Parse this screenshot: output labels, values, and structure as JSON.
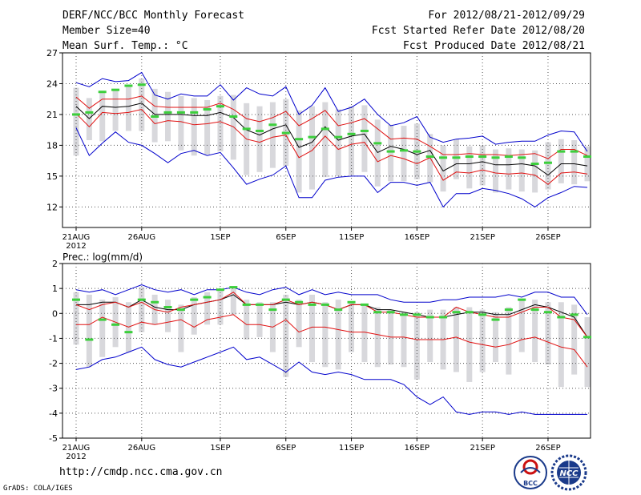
{
  "header": {
    "title": "DERF/NCC/BCC Monthly Forecast",
    "member_size": "Member Size=40",
    "variable": "Mean Surf. Temp.: °C",
    "period": "For 2012/08/21-2012/09/29",
    "fcst_started": "Fcst Started Refer Date 2012/08/20",
    "fcst_produced": "Fcst Produced Date 2012/08/21"
  },
  "footer": {
    "url": "http://cmdp.ncc.cma.gov.cn",
    "grads": "GrADS: COLA/IGES",
    "logo_bcc": "BCC",
    "logo_ncc": "NCC"
  },
  "colors": {
    "max_min": "#0000cc",
    "spread": "#e01010",
    "mean": "#000000",
    "obs": "#3ccf3c",
    "box": "#d8d8dc"
  },
  "chart_data": [
    {
      "type": "line",
      "title": "Mean Surf. Temp.: °C",
      "x_ticks": [
        "21AUG",
        "26AUG",
        "1SEP",
        "6SEP",
        "11SEP",
        "16SEP",
        "21SEP",
        "26SEP"
      ],
      "x_tick_index": [
        0,
        5,
        11,
        16,
        21,
        26,
        31,
        36
      ],
      "x_sublabel": "2012",
      "y_ticks": [
        "12",
        "15",
        "18",
        "21",
        "24",
        "27"
      ],
      "ylim": [
        10,
        27
      ],
      "grid": true,
      "series": [
        {
          "name": "max",
          "values": [
            24.1,
            23.7,
            24.5,
            24.2,
            24.3,
            25.1,
            22.9,
            22.5,
            23.0,
            22.8,
            22.8,
            23.9,
            22.4,
            23.6,
            23.0,
            22.8,
            23.7,
            21.0,
            21.9,
            23.6,
            21.3,
            21.7,
            22.5,
            21.0,
            19.9,
            20.2,
            20.8,
            18.8,
            18.3,
            18.6,
            18.7,
            18.9,
            18.1,
            18.3,
            18.4,
            18.4,
            19.0,
            19.4,
            19.3,
            17.4
          ]
        },
        {
          "name": "upper",
          "values": [
            22.7,
            21.6,
            22.5,
            22.5,
            22.5,
            22.8,
            21.8,
            21.7,
            21.7,
            21.7,
            21.7,
            22.1,
            21.5,
            20.6,
            20.3,
            20.7,
            21.3,
            19.9,
            20.6,
            21.4,
            19.9,
            20.2,
            20.6,
            19.6,
            18.6,
            18.7,
            18.6,
            17.9,
            17.1,
            17.1,
            17.2,
            17.1,
            17.1,
            17.0,
            17.1,
            17.2,
            16.7,
            17.6,
            17.6,
            17.0
          ]
        },
        {
          "name": "mean",
          "values": [
            21.8,
            20.6,
            21.8,
            21.7,
            21.8,
            22.1,
            21.0,
            21.0,
            21.0,
            20.9,
            20.9,
            21.2,
            20.7,
            19.5,
            19.0,
            19.6,
            20.0,
            17.8,
            18.3,
            19.8,
            18.5,
            18.9,
            19.1,
            17.3,
            17.9,
            17.6,
            17.1,
            17.5,
            15.5,
            16.2,
            16.2,
            16.4,
            16.1,
            16.1,
            16.2,
            16.0,
            15.1,
            16.2,
            16.2,
            16.0
          ]
        },
        {
          "name": "lower",
          "values": [
            21.1,
            19.8,
            21.2,
            21.1,
            21.2,
            21.5,
            20.1,
            20.4,
            20.3,
            20.0,
            20.1,
            20.3,
            19.8,
            18.6,
            18.3,
            18.8,
            19.0,
            16.8,
            17.5,
            18.9,
            17.6,
            18.1,
            18.3,
            16.4,
            17.0,
            16.7,
            16.2,
            16.8,
            14.6,
            15.4,
            15.3,
            15.6,
            15.3,
            15.2,
            15.3,
            15.1,
            14.2,
            15.3,
            15.4,
            15.2
          ]
        },
        {
          "name": "min",
          "values": [
            19.7,
            17.0,
            18.2,
            19.3,
            18.3,
            18.0,
            17.2,
            16.3,
            17.2,
            17.5,
            17.0,
            17.3,
            15.8,
            14.2,
            14.7,
            15.1,
            16.0,
            12.9,
            12.9,
            14.6,
            14.9,
            15.0,
            15.0,
            13.4,
            14.4,
            14.4,
            14.1,
            14.4,
            12.0,
            13.3,
            13.3,
            13.8,
            13.6,
            13.3,
            12.8,
            12.0,
            12.9,
            13.4,
            14.0,
            13.9
          ]
        },
        {
          "name": "obs",
          "values": [
            21.0,
            21.2,
            23.2,
            23.4,
            23.8,
            23.9,
            20.8,
            21.2,
            21.2,
            21.2,
            21.5,
            21.8,
            20.8,
            19.6,
            19.4,
            20.0,
            19.2,
            18.6,
            18.8,
            19.6,
            18.8,
            19.1,
            19.4,
            18.2,
            17.4,
            17.5,
            17.4,
            16.9,
            16.8,
            16.8,
            16.9,
            16.9,
            16.8,
            16.9,
            16.8,
            16.2,
            16.3,
            17.4,
            17.4,
            16.9
          ]
        }
      ],
      "boxes": [
        [
          17.0,
          23.6
        ],
        [
          18.5,
          22.6
        ],
        [
          18.4,
          23.3
        ],
        [
          19.4,
          23.4
        ],
        [
          19.4,
          23.9
        ],
        [
          19.4,
          24.5
        ],
        [
          18.3,
          23.5
        ],
        [
          18.4,
          23.2
        ],
        [
          17.5,
          22.8
        ],
        [
          17.0,
          22.6
        ],
        [
          17.1,
          22.4
        ],
        [
          17.4,
          22.8
        ],
        [
          16.6,
          22.9
        ],
        [
          15.1,
          22.1
        ],
        [
          15.4,
          21.8
        ],
        [
          15.8,
          22.2
        ],
        [
          16.0,
          22.5
        ],
        [
          13.4,
          21.4
        ],
        [
          13.7,
          21.8
        ],
        [
          14.9,
          22.2
        ],
        [
          15.0,
          21.5
        ],
        [
          15.1,
          21.8
        ],
        [
          15.4,
          21.9
        ],
        [
          14.0,
          20.5
        ],
        [
          14.5,
          20.0
        ],
        [
          14.5,
          19.9
        ],
        [
          14.7,
          20.1
        ],
        [
          14.4,
          19.1
        ],
        [
          13.5,
          18.0
        ],
        [
          14.7,
          18.6
        ],
        [
          13.8,
          17.9
        ],
        [
          14.1,
          18.0
        ],
        [
          13.4,
          17.6
        ],
        [
          13.7,
          17.7
        ],
        [
          13.5,
          17.6
        ],
        [
          13.4,
          17.5
        ],
        [
          13.7,
          18.3
        ],
        [
          14.3,
          18.6
        ],
        [
          14.2,
          18.5
        ],
        [
          14.5,
          17.9
        ]
      ]
    },
    {
      "type": "line",
      "title": "Prec.: log(mm/d)",
      "x_ticks": [
        "21AUG",
        "26AUG",
        "1SEP",
        "6SEP",
        "11SEP",
        "16SEP",
        "21SEP",
        "26SEP"
      ],
      "x_tick_index": [
        0,
        5,
        11,
        16,
        21,
        26,
        31,
        36
      ],
      "x_sublabel": "2012",
      "y_ticks": [
        "-5",
        "-4",
        "-3",
        "-2",
        "-1",
        "0",
        "1",
        "2"
      ],
      "ylim": [
        -5,
        2
      ],
      "grid": true,
      "series": [
        {
          "name": "max",
          "values": [
            0.95,
            0.85,
            0.95,
            0.75,
            0.95,
            1.15,
            0.95,
            0.85,
            0.95,
            0.75,
            0.95,
            0.95,
            1.05,
            0.85,
            0.75,
            0.95,
            1.05,
            0.75,
            0.95,
            0.75,
            0.85,
            0.75,
            0.75,
            0.75,
            0.55,
            0.45,
            0.45,
            0.45,
            0.55,
            0.55,
            0.65,
            0.65,
            0.65,
            0.75,
            0.65,
            0.85,
            0.85,
            0.65,
            0.65,
            -0.05
          ]
        },
        {
          "name": "mean",
          "values": [
            0.35,
            0.35,
            0.45,
            0.45,
            0.25,
            0.55,
            0.25,
            0.15,
            0.15,
            0.35,
            0.45,
            0.55,
            0.75,
            0.35,
            0.35,
            0.35,
            0.45,
            0.35,
            0.45,
            0.35,
            0.15,
            0.35,
            0.35,
            0.15,
            0.15,
            0.05,
            -0.05,
            -0.15,
            -0.15,
            -0.05,
            0.05,
            0.05,
            -0.05,
            -0.05,
            0.15,
            0.35,
            0.25,
            0.05,
            -0.15,
            -0.95
          ]
        },
        {
          "name": "spread",
          "values": [
            0.35,
            0.15,
            0.35,
            0.45,
            0.25,
            0.45,
            0.15,
            0.05,
            0.25,
            0.35,
            0.45,
            0.55,
            0.85,
            0.35,
            0.35,
            0.35,
            0.55,
            0.35,
            0.45,
            0.35,
            0.15,
            0.35,
            0.35,
            0.05,
            0.05,
            -0.05,
            -0.15,
            -0.15,
            -0.15,
            0.25,
            0.05,
            -0.05,
            -0.15,
            -0.15,
            0.05,
            0.25,
            0.25,
            -0.15,
            -0.25,
            -0.95
          ]
        },
        {
          "name": "lower",
          "values": [
            -0.45,
            -0.45,
            -0.15,
            -0.35,
            -0.55,
            -0.35,
            -0.45,
            -0.35,
            -0.25,
            -0.55,
            -0.25,
            -0.15,
            -0.05,
            -0.45,
            -0.45,
            -0.55,
            -0.25,
            -0.75,
            -0.55,
            -0.55,
            -0.65,
            -0.75,
            -0.75,
            -0.85,
            -0.95,
            -0.95,
            -1.05,
            -1.05,
            -1.05,
            -0.95,
            -1.15,
            -1.25,
            -1.35,
            -1.25,
            -1.05,
            -0.95,
            -1.15,
            -1.35,
            -1.45,
            -2.15
          ]
        },
        {
          "name": "min",
          "values": [
            -2.25,
            -2.15,
            -1.85,
            -1.75,
            -1.55,
            -1.35,
            -1.85,
            -2.05,
            -2.15,
            -1.95,
            -1.75,
            -1.55,
            -1.35,
            -1.85,
            -1.75,
            -2.05,
            -2.35,
            -1.95,
            -2.35,
            -2.45,
            -2.35,
            -2.45,
            -2.65,
            -2.65,
            -2.65,
            -2.85,
            -3.35,
            -3.65,
            -3.35,
            -3.95,
            -4.05,
            -3.95,
            -3.95,
            -4.05,
            -3.95,
            -4.05,
            -4.05,
            -4.05,
            -4.05,
            -4.05
          ]
        },
        {
          "name": "obs",
          "values": [
            0.55,
            -1.05,
            -0.25,
            -0.45,
            -0.75,
            0.55,
            0.45,
            0.25,
            0.15,
            0.55,
            0.65,
            0.95,
            1.05,
            0.35,
            0.35,
            0.15,
            0.55,
            0.45,
            0.35,
            0.35,
            0.15,
            0.45,
            0.35,
            0.05,
            0.05,
            -0.05,
            -0.05,
            -0.15,
            -0.15,
            0.05,
            0.05,
            -0.05,
            -0.25,
            0.15,
            0.55,
            0.15,
            0.05,
            -0.15,
            -0.05,
            -0.95
          ]
        }
      ],
      "boxes": [
        [
          -1.25,
          0.85
        ],
        [
          -2.15,
          0.75
        ],
        [
          -1.75,
          0.55
        ],
        [
          -1.35,
          0.65
        ],
        [
          -1.55,
          0.45
        ],
        [
          -0.75,
          1.05
        ],
        [
          -0.45,
          0.75
        ],
        [
          -0.75,
          0.55
        ],
        [
          -1.55,
          0.35
        ],
        [
          -0.85,
          0.65
        ],
        [
          -0.45,
          0.85
        ],
        [
          -0.45,
          0.95
        ],
        [
          -0.05,
          1.05
        ],
        [
          -1.05,
          0.55
        ],
        [
          -0.95,
          0.45
        ],
        [
          -1.55,
          0.45
        ],
        [
          -2.55,
          0.75
        ],
        [
          -1.35,
          0.55
        ],
        [
          -1.95,
          0.75
        ],
        [
          -2.15,
          0.45
        ],
        [
          -2.25,
          0.55
        ],
        [
          -1.55,
          0.45
        ],
        [
          -1.95,
          0.35
        ],
        [
          -2.15,
          0.25
        ],
        [
          -2.05,
          0.15
        ],
        [
          -2.15,
          0.05
        ],
        [
          -2.65,
          0.05
        ],
        [
          -1.95,
          0.15
        ],
        [
          -2.25,
          0.15
        ],
        [
          -2.35,
          0.25
        ],
        [
          -2.75,
          0.25
        ],
        [
          -2.35,
          0.15
        ],
        [
          -1.95,
          0.05
        ],
        [
          -2.45,
          0.25
        ],
        [
          -1.55,
          0.55
        ],
        [
          -1.95,
          0.55
        ],
        [
          -2.05,
          0.45
        ],
        [
          -2.95,
          0.45
        ],
        [
          -2.45,
          0.35
        ],
        [
          -2.95,
          -0.15
        ]
      ]
    }
  ]
}
